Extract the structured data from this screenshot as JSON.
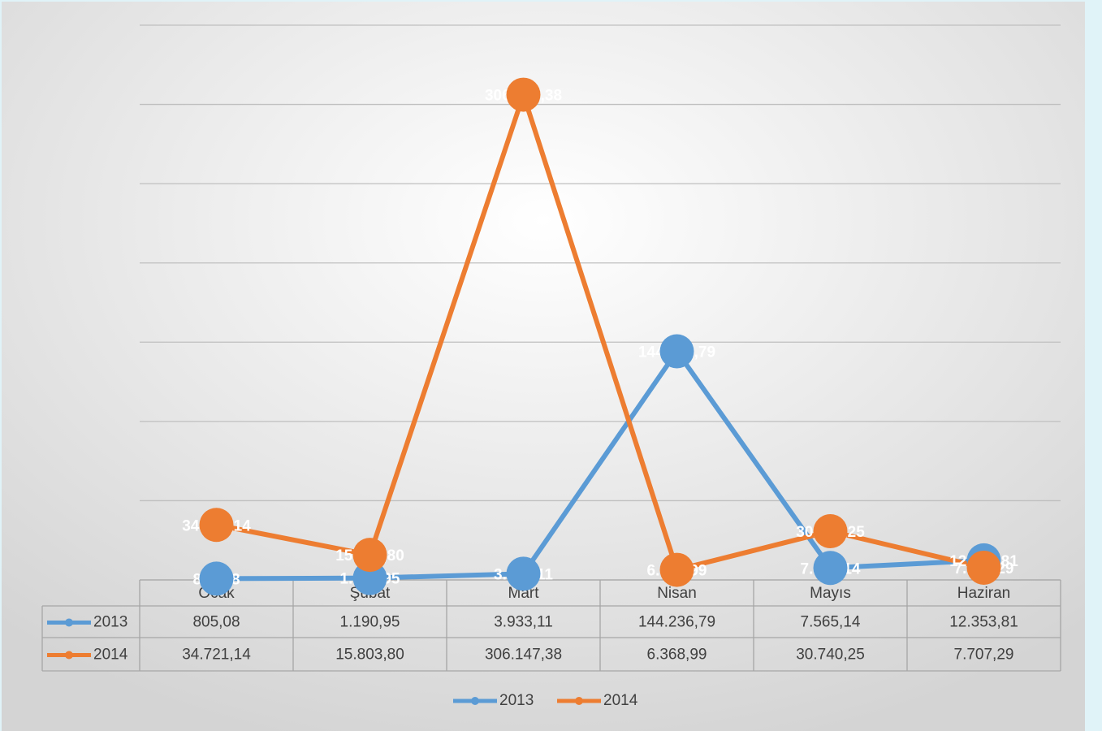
{
  "chart_data": {
    "type": "line",
    "categories": [
      "Ocak",
      "Şubat",
      "Mart",
      "Nisan",
      "Mayıs",
      "Haziran"
    ],
    "series": [
      {
        "name": "2013",
        "color": "#5b9bd5",
        "values": [
          805.08,
          1190.95,
          3933.11,
          144236.79,
          7565.14,
          12353.81
        ],
        "value_labels": [
          "805,08",
          "1.190,95",
          "3.933,11",
          "144.236,79",
          "7.565,14",
          "12.353,81"
        ]
      },
      {
        "name": "2014",
        "color": "#ed7d31",
        "values": [
          34721.14,
          15803.8,
          306147.38,
          6368.99,
          30740.25,
          7707.29
        ],
        "value_labels": [
          "34.721,14",
          "15.803,80",
          "306.147,38",
          "6.368,99",
          "30.740,25",
          "7.707,29"
        ]
      }
    ],
    "ylim": [
      0,
      350000
    ],
    "yticks": [
      0,
      50000,
      100000,
      150000,
      200000,
      250000,
      300000,
      350000
    ],
    "grid": true,
    "legend": "bottom",
    "data_table": true
  }
}
